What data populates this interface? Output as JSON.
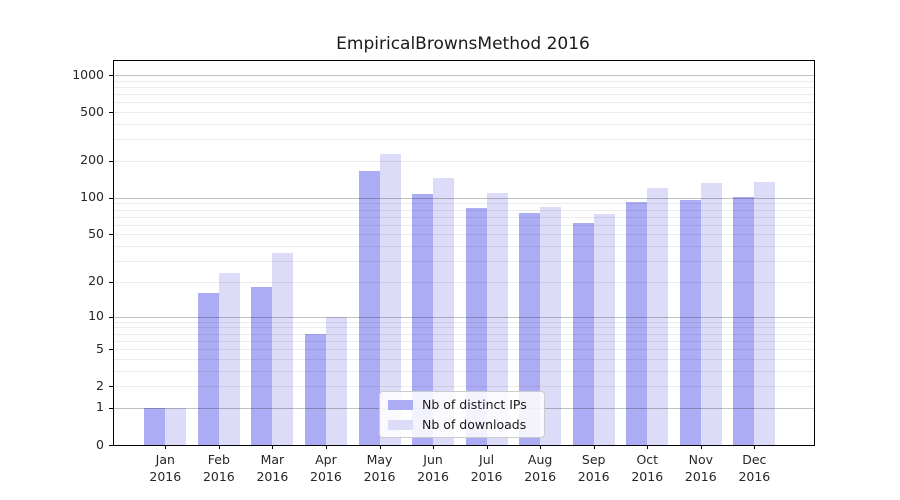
{
  "title": "EmpiricalBrownsMethod 2016",
  "chart_data": {
    "type": "bar",
    "title": "EmpiricalBrownsMethod 2016",
    "xlabel": "",
    "ylabel": "",
    "year_label": "2016",
    "categories": [
      "Jan",
      "Feb",
      "Mar",
      "Apr",
      "May",
      "Jun",
      "Jul",
      "Aug",
      "Sep",
      "Oct",
      "Nov",
      "Dec"
    ],
    "series": [
      {
        "name": "Nb of distinct IPs",
        "color": "#acacf4",
        "values": [
          1,
          16,
          18,
          7,
          165,
          107,
          82,
          75,
          62,
          92,
          96,
          102
        ]
      },
      {
        "name": "Nb of downloads",
        "color": "#dcdcf8",
        "values": [
          1,
          24,
          35,
          10,
          230,
          145,
          110,
          84,
          73,
          120,
          132,
          135
        ]
      }
    ],
    "yscale": "log10(1+y)",
    "yticks": [
      1000,
      500,
      200,
      100,
      50,
      20,
      10,
      5,
      2,
      1,
      0
    ],
    "ylim": [
      0,
      1300
    ],
    "grid": "horizontal, minor + major (visible through bars)",
    "legend_position": "lower center"
  },
  "colors": {
    "spine": "#000000",
    "tick_text": "#262626",
    "legend_border": "#cccccc"
  }
}
